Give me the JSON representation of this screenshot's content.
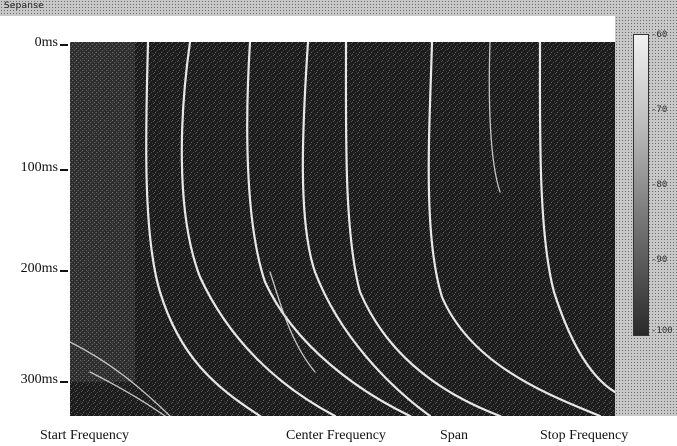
{
  "window": {
    "title": "Sepanse"
  },
  "plot": {
    "y_axis_ticks": [
      {
        "label": "0ms"
      },
      {
        "label": "100ms"
      },
      {
        "label": "200ms"
      },
      {
        "label": "300ms"
      }
    ],
    "x_axis_labels": [
      {
        "label": "Start Frequency"
      },
      {
        "label": "Center Frequency"
      },
      {
        "label": "Span"
      },
      {
        "label": "Stop Frequency"
      }
    ]
  },
  "colorbar": {
    "ticks": [
      "-60",
      "-70",
      "-80",
      "-90",
      "-100"
    ]
  }
}
